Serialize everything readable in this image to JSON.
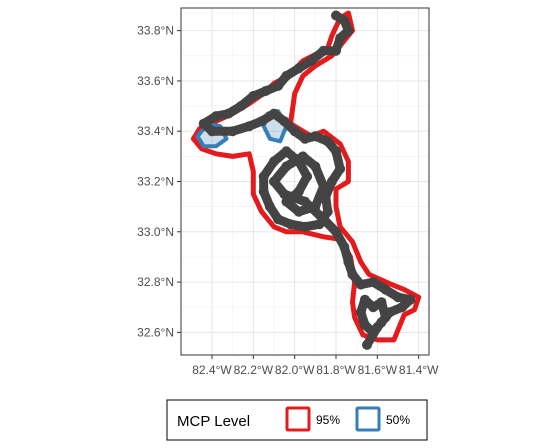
{
  "chart_data": {
    "type": "map",
    "projection": "lon-lat",
    "xlim": [
      -82.55,
      -81.35
    ],
    "ylim": [
      32.51,
      33.89
    ],
    "grid": true,
    "x_ticks": [
      {
        "value": -82.4,
        "label": "82.4°W"
      },
      {
        "value": -82.2,
        "label": "82.2°W"
      },
      {
        "value": -82.0,
        "label": "82.0°W"
      },
      {
        "value": -81.8,
        "label": "81.8°W"
      },
      {
        "value": -81.6,
        "label": "81.6°W"
      },
      {
        "value": -81.4,
        "label": "81.4°W"
      }
    ],
    "y_ticks": [
      {
        "value": 32.6,
        "label": "32.6°N"
      },
      {
        "value": 32.8,
        "label": "32.8°N"
      },
      {
        "value": 33.0,
        "label": "33.0°N"
      },
      {
        "value": 33.2,
        "label": "33.2°N"
      },
      {
        "value": 33.4,
        "label": "33.4°N"
      },
      {
        "value": 33.6,
        "label": "33.6°N"
      },
      {
        "value": 33.8,
        "label": "33.8°N"
      }
    ],
    "legend": {
      "title": "MCP Level",
      "position": "bottom",
      "entries": [
        {
          "label": "95%",
          "color": "#e41a1c"
        },
        {
          "label": "50%",
          "color": "#377eb8"
        }
      ]
    },
    "series": [
      {
        "name": "95%",
        "color": "#e41a1c",
        "polygon": [
          [
            -82.1,
            33.59
          ],
          [
            -82.03,
            33.62
          ],
          [
            -81.96,
            33.68
          ],
          [
            -81.84,
            33.73
          ],
          [
            -81.82,
            33.78
          ],
          [
            -81.78,
            33.85
          ],
          [
            -81.74,
            33.87
          ],
          [
            -81.72,
            33.8
          ],
          [
            -81.77,
            33.75
          ],
          [
            -81.82,
            33.7
          ],
          [
            -81.9,
            33.66
          ],
          [
            -81.96,
            33.62
          ],
          [
            -82.0,
            33.55
          ],
          [
            -82.02,
            33.43
          ],
          [
            -81.92,
            33.38
          ],
          [
            -81.86,
            33.4
          ],
          [
            -81.78,
            33.35
          ],
          [
            -81.74,
            33.28
          ],
          [
            -81.74,
            33.2
          ],
          [
            -81.8,
            33.17
          ],
          [
            -81.8,
            33.1
          ],
          [
            -81.78,
            33.02
          ],
          [
            -81.72,
            32.96
          ],
          [
            -81.68,
            32.88
          ],
          [
            -81.64,
            32.83
          ],
          [
            -81.53,
            32.79
          ],
          [
            -81.47,
            32.77
          ],
          [
            -81.4,
            32.74
          ],
          [
            -81.42,
            32.69
          ],
          [
            -81.47,
            32.67
          ],
          [
            -81.49,
            32.63
          ],
          [
            -81.52,
            32.57
          ],
          [
            -81.6,
            32.57
          ],
          [
            -81.67,
            32.59
          ],
          [
            -81.71,
            32.66
          ],
          [
            -81.72,
            32.72
          ],
          [
            -81.71,
            32.8
          ],
          [
            -81.73,
            32.9
          ],
          [
            -81.78,
            32.97
          ],
          [
            -81.86,
            32.98
          ],
          [
            -81.96,
            33.0
          ],
          [
            -82.04,
            33.0
          ],
          [
            -82.1,
            33.02
          ],
          [
            -82.16,
            33.08
          ],
          [
            -82.2,
            33.15
          ],
          [
            -82.2,
            33.24
          ],
          [
            -82.22,
            33.31
          ],
          [
            -82.3,
            33.3
          ],
          [
            -82.38,
            33.31
          ],
          [
            -82.45,
            33.33
          ],
          [
            -82.49,
            33.37
          ],
          [
            -82.46,
            33.41
          ],
          [
            -82.38,
            33.44
          ],
          [
            -82.3,
            33.47
          ],
          [
            -82.22,
            33.51
          ],
          [
            -82.15,
            33.55
          ]
        ]
      },
      {
        "name": "50%",
        "color": "#377eb8",
        "polygon": [
          [
            -82.42,
            33.43
          ],
          [
            -82.36,
            33.42
          ],
          [
            -82.33,
            33.37
          ],
          [
            -82.38,
            33.34
          ],
          [
            -82.44,
            33.34
          ],
          [
            -82.47,
            33.38
          ]
        ]
      },
      {
        "name": "50%",
        "color": "#377eb8",
        "polygon": [
          [
            -82.13,
            33.47
          ],
          [
            -82.08,
            33.48
          ],
          [
            -82.04,
            33.42
          ],
          [
            -82.07,
            33.36
          ],
          [
            -82.12,
            33.37
          ],
          [
            -82.15,
            33.42
          ]
        ]
      },
      {
        "name": "locations",
        "color": "#444444",
        "path": [
          [
            -81.8,
            33.86
          ],
          [
            -81.76,
            33.84
          ],
          [
            -81.74,
            33.8
          ],
          [
            -81.78,
            33.77
          ],
          [
            -81.8,
            33.72
          ],
          [
            -81.86,
            33.72
          ],
          [
            -81.92,
            33.68
          ],
          [
            -81.98,
            33.65
          ],
          [
            -82.04,
            33.62
          ],
          [
            -82.08,
            33.58
          ],
          [
            -82.14,
            33.56
          ],
          [
            -82.2,
            33.54
          ],
          [
            -82.26,
            33.5
          ],
          [
            -82.32,
            33.47
          ],
          [
            -82.38,
            33.46
          ],
          [
            -82.44,
            33.43
          ],
          [
            -82.4,
            33.4
          ],
          [
            -82.3,
            33.4
          ],
          [
            -82.22,
            33.42
          ],
          [
            -82.16,
            33.44
          ],
          [
            -82.1,
            33.47
          ],
          [
            -82.05,
            33.44
          ],
          [
            -82.0,
            33.4
          ],
          [
            -81.95,
            33.37
          ],
          [
            -81.9,
            33.38
          ],
          [
            -81.84,
            33.36
          ],
          [
            -81.8,
            33.32
          ],
          [
            -81.78,
            33.25
          ],
          [
            -81.82,
            33.2
          ],
          [
            -81.85,
            33.14
          ],
          [
            -81.84,
            33.08
          ],
          [
            -81.88,
            33.03
          ],
          [
            -81.95,
            33.02
          ],
          [
            -82.02,
            33.03
          ],
          [
            -82.08,
            33.05
          ],
          [
            -82.12,
            33.1
          ],
          [
            -82.15,
            33.16
          ],
          [
            -82.15,
            33.22
          ],
          [
            -82.1,
            33.28
          ],
          [
            -82.04,
            33.32
          ],
          [
            -81.98,
            33.28
          ],
          [
            -81.94,
            33.22
          ],
          [
            -81.98,
            33.16
          ],
          [
            -82.04,
            33.12
          ],
          [
            -81.98,
            33.08
          ],
          [
            -81.9,
            33.1
          ],
          [
            -81.86,
            33.18
          ],
          [
            -81.9,
            33.26
          ],
          [
            -81.96,
            33.3
          ],
          [
            -82.04,
            33.26
          ],
          [
            -82.1,
            33.2
          ],
          [
            -82.05,
            33.15
          ],
          [
            -81.95,
            33.12
          ],
          [
            -81.86,
            33.05
          ],
          [
            -81.8,
            33.0
          ],
          [
            -81.76,
            32.94
          ],
          [
            -81.74,
            32.88
          ],
          [
            -81.72,
            32.83
          ],
          [
            -81.68,
            32.79
          ],
          [
            -81.62,
            32.8
          ],
          [
            -81.56,
            32.77
          ],
          [
            -81.5,
            32.74
          ],
          [
            -81.44,
            32.73
          ],
          [
            -81.48,
            32.7
          ],
          [
            -81.54,
            32.68
          ],
          [
            -81.58,
            32.64
          ],
          [
            -81.62,
            32.6
          ],
          [
            -81.66,
            32.63
          ],
          [
            -81.68,
            32.68
          ],
          [
            -81.66,
            32.73
          ],
          [
            -81.62,
            32.7
          ],
          [
            -81.58,
            32.72
          ],
          [
            -81.56,
            32.66
          ],
          [
            -81.6,
            32.62
          ],
          [
            -81.65,
            32.55
          ]
        ]
      }
    ]
  }
}
